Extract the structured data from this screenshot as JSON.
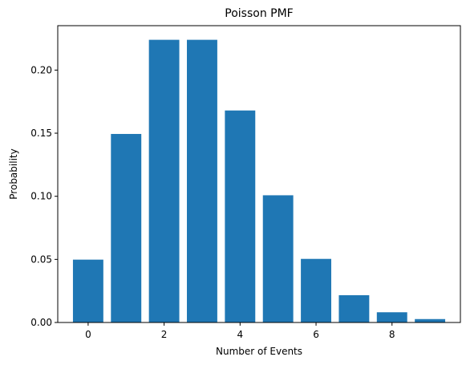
{
  "chart_data": {
    "type": "bar",
    "title": "Poisson PMF",
    "xlabel": "Number of Events",
    "ylabel": "Probability",
    "x": [
      0,
      1,
      2,
      3,
      4,
      5,
      6,
      7,
      8,
      9
    ],
    "values": [
      0.0498,
      0.1494,
      0.224,
      0.224,
      0.168,
      0.1008,
      0.0504,
      0.0216,
      0.0081,
      0.0027
    ],
    "xlim": [
      -0.8,
      9.8
    ],
    "ylim": [
      0,
      0.2352
    ],
    "xticks": [
      0,
      2,
      4,
      6,
      8
    ],
    "xtick_labels": [
      "0",
      "2",
      "4",
      "6",
      "8"
    ],
    "yticks": [
      0,
      0.05,
      0.1,
      0.15,
      0.2
    ],
    "ytick_labels": [
      "0.00",
      "0.05",
      "0.10",
      "0.15",
      "0.20"
    ],
    "bar_color": "#1f77b4",
    "grid": false,
    "legend": "none"
  }
}
